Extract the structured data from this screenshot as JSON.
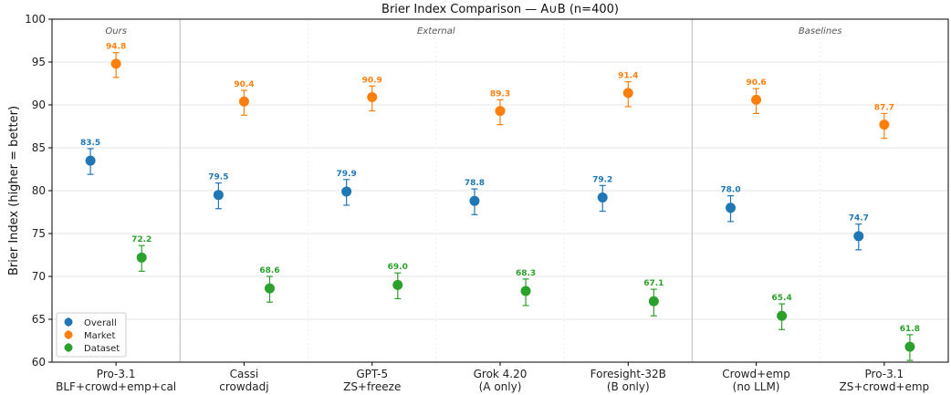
{
  "chart_data": {
    "type": "scatter",
    "title": "Brier Index Comparison — A∪B (n=400)",
    "xlabel": "",
    "ylabel": "Brier Index (higher = better)",
    "ylim": [
      60,
      100
    ],
    "yticks": [
      60,
      65,
      70,
      75,
      80,
      85,
      90,
      95,
      100
    ],
    "grid": true,
    "legend_position": "lower-left",
    "categories": [
      [
        "Pro-3.1",
        "BLF+crowd+emp+cal"
      ],
      [
        "Cassi",
        "crowdadj"
      ],
      [
        "GPT-5",
        "ZS+freeze"
      ],
      [
        "Grok 4.20",
        "(A only)"
      ],
      [
        "Foresight-32B",
        "(B only)"
      ],
      [
        "Crowd+emp",
        "(no LLM)"
      ],
      [
        "Pro-3.1",
        "ZS+crowd+emp"
      ]
    ],
    "groups": [
      {
        "label": "Ours",
        "start": 0,
        "end": 0
      },
      {
        "label": "External",
        "start": 1,
        "end": 4
      },
      {
        "label": "Baselines",
        "start": 5,
        "end": 6
      }
    ],
    "series": [
      {
        "name": "Overall",
        "color": "#1f77b4",
        "values": [
          83.5,
          79.5,
          79.9,
          78.8,
          79.2,
          78.0,
          74.7
        ],
        "labels": [
          "83.5",
          "79.5",
          "79.9",
          "78.8",
          "79.2",
          "78.0",
          "74.7"
        ],
        "err_low": [
          1.6,
          1.6,
          1.6,
          1.6,
          1.6,
          1.6,
          1.6
        ],
        "err_high": [
          1.4,
          1.4,
          1.4,
          1.4,
          1.4,
          1.4,
          1.4
        ]
      },
      {
        "name": "Market",
        "color": "#ff7f0e",
        "values": [
          94.8,
          90.4,
          90.9,
          89.3,
          91.4,
          90.6,
          87.7
        ],
        "labels": [
          "94.8",
          "90.4",
          "90.9",
          "89.3",
          "91.4",
          "90.6",
          "87.7"
        ],
        "err_low": [
          1.6,
          1.6,
          1.6,
          1.6,
          1.6,
          1.6,
          1.6
        ],
        "err_high": [
          1.3,
          1.3,
          1.3,
          1.3,
          1.3,
          1.3,
          1.3
        ]
      },
      {
        "name": "Dataset",
        "color": "#2ca02c",
        "values": [
          72.2,
          68.6,
          69.0,
          68.3,
          67.1,
          65.4,
          61.8
        ],
        "labels": [
          "72.2",
          "68.6",
          "69.0",
          "68.3",
          "67.1",
          "65.4",
          "61.8"
        ],
        "err_low": [
          1.6,
          1.6,
          1.6,
          1.7,
          1.7,
          1.6,
          1.6
        ],
        "err_high": [
          1.4,
          1.4,
          1.4,
          1.4,
          1.4,
          1.4,
          1.4
        ]
      }
    ]
  }
}
